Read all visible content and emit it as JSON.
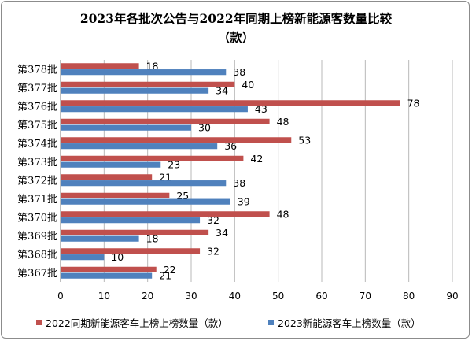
{
  "chart_data": {
    "type": "bar",
    "orientation": "horizontal",
    "title": "2023年各批次公告与2022年同期上榜新能源客数量比较",
    "subtitle": "（款）",
    "categories": [
      "第378批",
      "第377批",
      "第376批",
      "第375批",
      "第374批",
      "第373批",
      "第372批",
      "第371批",
      "第370批",
      "第369批",
      "第368批",
      "第367批"
    ],
    "series": [
      {
        "name": "2022同期新能源客车上榜上榜数量（款）",
        "color": "#c0504d",
        "values": [
          18,
          40,
          78,
          48,
          53,
          42,
          21,
          25,
          48,
          34,
          32,
          22
        ]
      },
      {
        "name": "2023新能源客车上榜数量（款）",
        "color": "#4f81bd",
        "values": [
          38,
          34,
          43,
          30,
          36,
          23,
          38,
          39,
          32,
          18,
          10,
          21
        ]
      }
    ],
    "xlim": [
      0,
      90
    ],
    "xticks": [
      0,
      10,
      20,
      30,
      40,
      50,
      60,
      70,
      80,
      90
    ],
    "grid": true,
    "legend_position": "bottom",
    "data_labels": true
  }
}
